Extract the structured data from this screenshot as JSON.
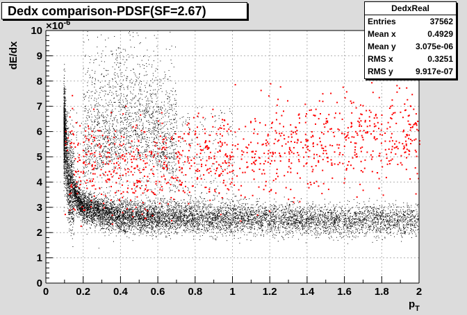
{
  "title": "Dedx comparison-PDSF(SF=2.67)",
  "stats": {
    "name": "DedxReal",
    "rows": [
      {
        "label": "Entries",
        "value": "37562"
      },
      {
        "label": "Mean x",
        "value": "0.4929"
      },
      {
        "label": "Mean y",
        "value": "3.075e-06"
      },
      {
        "label": "RMS x",
        "value": "0.3251"
      },
      {
        "label": "RMS y",
        "value": "9.917e-07"
      }
    ]
  },
  "chart_data": {
    "type": "scatter",
    "title": "Dedx comparison-PDSF(SF=2.67)",
    "xlabel": "p",
    "xlabel_subscript": "T",
    "ylabel": "dE/dx",
    "y_exponent_label": "×10",
    "y_exponent": "-6",
    "xlim": [
      0,
      2
    ],
    "ylim": [
      0,
      10
    ],
    "x_ticks": [
      "0",
      "0.2",
      "0.4",
      "0.6",
      "0.8",
      "1",
      "1.2",
      "1.4",
      "1.6",
      "1.8",
      "2"
    ],
    "y_ticks": [
      "0",
      "1",
      "2",
      "3",
      "4",
      "5",
      "6",
      "7",
      "8",
      "9",
      "10"
    ],
    "grid": true,
    "series": [
      {
        "color": "#000000",
        "description_points": [
          {
            "x": 0.1,
            "y": 6.0
          },
          {
            "x": 0.12,
            "y": 4.0
          },
          {
            "x": 0.2,
            "y": 3.0
          },
          {
            "x": 0.4,
            "y": 2.6
          },
          {
            "x": 0.6,
            "y": 2.6
          },
          {
            "x": 1.0,
            "y": 2.6
          },
          {
            "x": 1.5,
            "y": 2.5
          },
          {
            "x": 2.0,
            "y": 2.5
          }
        ]
      },
      {
        "color": "#ff0000",
        "description_points": [
          {
            "x": 0.2,
            "y": 5.0
          },
          {
            "x": 0.5,
            "y": 4.5
          },
          {
            "x": 1.0,
            "y": 5.0
          },
          {
            "x": 1.5,
            "y": 5.5
          },
          {
            "x": 2.0,
            "y": 5.8
          }
        ]
      }
    ]
  },
  "colors": {
    "background": "#dcdcdc",
    "plot_background": "#ffffff",
    "primary_series": "#000000",
    "secondary_series": "#ff0000"
  }
}
